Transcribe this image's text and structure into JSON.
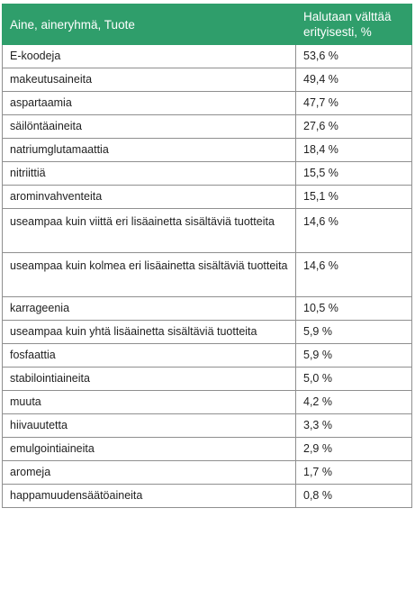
{
  "header": {
    "col1": "Aine, aineryhmä, Tuote",
    "col2": "Halutaan välttää erityisesti, %"
  },
  "rows": [
    {
      "name": "E-koodeja",
      "value": "53,6 %"
    },
    {
      "name": "makeutusaineita",
      "value": "49,4 %"
    },
    {
      "name": "aspartaamia",
      "value": "47,7 %"
    },
    {
      "name": "säilöntäaineita",
      "value": "27,6 %"
    },
    {
      "name": "natriumglutamaattia",
      "value": "18,4 %"
    },
    {
      "name": "nitriittiä",
      "value": "15,5 %"
    },
    {
      "name": "arominvahventeita",
      "value": "15,1 %"
    },
    {
      "name": "useampaa kuin viittä eri lisäainetta sisältäviä tuotteita",
      "value": "14,6 %"
    },
    {
      "name": "useampaa kuin kolmea eri lisäainetta sisältäviä tuotteita",
      "value": "14,6 %"
    },
    {
      "name": "karrageenia",
      "value": "10,5 %"
    },
    {
      "name": "useampaa kuin yhtä lisäainetta sisältäviä tuotteita",
      "value": "5,9 %"
    },
    {
      "name": "fosfaattia",
      "value": "5,9 %"
    },
    {
      "name": "stabilointiaineita",
      "value": "5,0 %"
    },
    {
      "name": "muuta",
      "value": "4,2 %"
    },
    {
      "name": "hiivauutetta",
      "value": "3,3 %"
    },
    {
      "name": "emulgointiaineita",
      "value": "2,9 %"
    },
    {
      "name": "aromeja",
      "value": "1,7 %"
    },
    {
      "name": "happamuudensäätöaineita",
      "value": "0,8 %"
    }
  ]
}
